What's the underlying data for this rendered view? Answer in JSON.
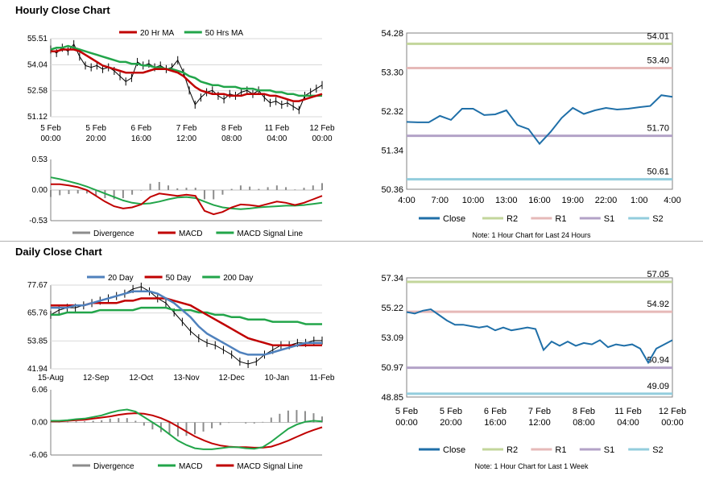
{
  "hourly": {
    "title": "Hourly Close Chart",
    "price": {
      "legend": [
        {
          "label": "20 Hr MA",
          "color": "#c00000"
        },
        {
          "label": "50 Hrs MA",
          "color": "#22a54a"
        }
      ],
      "yticks": [
        "55.51",
        "54.04",
        "52.58",
        "51.12"
      ],
      "ylim": [
        51.12,
        55.51
      ],
      "xticks": [
        [
          "5 Feb",
          "00:00"
        ],
        [
          "5 Feb",
          "20:00"
        ],
        [
          "6 Feb",
          "16:00"
        ],
        [
          "7 Feb",
          "12:00"
        ],
        [
          "8 Feb",
          "08:00"
        ],
        [
          "11 Feb",
          "04:00"
        ],
        [
          "12 Feb",
          "00:00"
        ]
      ],
      "close_series": [
        54.9,
        54.7,
        55.0,
        54.8,
        55.2,
        54.5,
        54.0,
        53.9,
        54.0,
        53.8,
        53.9,
        53.7,
        53.4,
        53.1,
        53.3,
        54.2,
        54.0,
        54.1,
        53.9,
        54.0,
        53.8,
        53.9,
        54.3,
        53.6,
        52.6,
        51.8,
        52.2,
        52.5,
        52.6,
        52.3,
        52.1,
        52.4,
        52.3,
        52.5,
        52.6,
        52.4,
        52.6,
        52.2,
        51.9,
        52.0,
        51.8,
        51.9,
        51.7,
        51.5,
        52.3,
        52.5,
        52.7,
        52.9
      ],
      "ma20": [
        54.8,
        54.8,
        54.9,
        54.9,
        54.9,
        54.8,
        54.6,
        54.4,
        54.2,
        54.0,
        53.9,
        53.8,
        53.7,
        53.6,
        53.6,
        53.6,
        53.6,
        53.7,
        53.8,
        53.8,
        53.8,
        53.7,
        53.6,
        53.4,
        53.1,
        52.8,
        52.6,
        52.5,
        52.4,
        52.4,
        52.4,
        52.3,
        52.3,
        52.3,
        52.4,
        52.4,
        52.4,
        52.4,
        52.3,
        52.3,
        52.2,
        52.1,
        52.0,
        52.0,
        52.1,
        52.2,
        52.3,
        52.4
      ],
      "ma50": [
        54.9,
        55.0,
        55.0,
        55.1,
        55.0,
        54.9,
        54.8,
        54.7,
        54.6,
        54.5,
        54.4,
        54.3,
        54.2,
        54.2,
        54.1,
        54.1,
        54.0,
        54.0,
        53.9,
        53.9,
        53.8,
        53.8,
        53.7,
        53.6,
        53.4,
        53.3,
        53.1,
        53.0,
        52.9,
        52.9,
        52.8,
        52.8,
        52.8,
        52.7,
        52.7,
        52.7,
        52.6,
        52.6,
        52.6,
        52.5,
        52.5,
        52.4,
        52.4,
        52.3,
        52.3,
        52.3,
        52.3,
        52.3
      ]
    },
    "macd": {
      "yticks": [
        "0.53",
        "0.00",
        "-0.53"
      ],
      "ylim": [
        -0.53,
        0.53
      ],
      "legend": [
        {
          "label": "Divergence",
          "color": "#8c8c8c"
        },
        {
          "label": "MACD",
          "color": "#c00000"
        },
        {
          "label": "MACD Signal Line",
          "color": "#22a54a"
        }
      ],
      "macd_series": [
        0.1,
        0.1,
        0.08,
        0.05,
        0.0,
        -0.1,
        -0.2,
        -0.28,
        -0.32,
        -0.3,
        -0.25,
        -0.12,
        -0.06,
        -0.08,
        -0.1,
        -0.08,
        -0.1,
        -0.36,
        -0.42,
        -0.38,
        -0.3,
        -0.25,
        -0.26,
        -0.28,
        -0.24,
        -0.2,
        -0.22,
        -0.26,
        -0.22,
        -0.16,
        -0.1
      ],
      "signal_series": [
        0.22,
        0.19,
        0.15,
        0.11,
        0.06,
        0.0,
        -0.06,
        -0.12,
        -0.18,
        -0.22,
        -0.24,
        -0.23,
        -0.2,
        -0.16,
        -0.13,
        -0.12,
        -0.14,
        -0.2,
        -0.26,
        -0.3,
        -0.32,
        -0.33,
        -0.32,
        -0.3,
        -0.29,
        -0.28,
        -0.27,
        -0.27,
        -0.26,
        -0.24,
        -0.22
      ]
    },
    "levels": {
      "yticks": [
        "54.28",
        "53.30",
        "52.32",
        "51.34",
        "50.36"
      ],
      "ylim": [
        50.36,
        54.28
      ],
      "xticks": [
        "4:00",
        "7:00",
        "10:00",
        "13:00",
        "16:00",
        "19:00",
        "22:00",
        "1:00",
        "4:00"
      ],
      "close": [
        52.05,
        52.04,
        52.04,
        52.2,
        52.1,
        52.38,
        52.38,
        52.22,
        52.24,
        52.34,
        51.97,
        51.87,
        51.5,
        51.8,
        52.15,
        52.4,
        52.25,
        52.34,
        52.4,
        52.36,
        52.38,
        52.42,
        52.45,
        52.72,
        52.68
      ],
      "lines": [
        {
          "name": "R2",
          "value": 54.01,
          "label": "54.01",
          "color": "#c3d69b"
        },
        {
          "name": "R1",
          "value": 53.4,
          "label": "53.40",
          "color": "#e6b9b8"
        },
        {
          "name": "S1",
          "value": 51.7,
          "label": "51.70",
          "color": "#b3a2c7"
        },
        {
          "name": "S2",
          "value": 50.61,
          "label": "50.61",
          "color": "#93cddd"
        }
      ],
      "close_label": "Close",
      "close_color": "#1f6fa8",
      "note": "Note: 1 Hour Chart for Last 24 Hours"
    }
  },
  "daily": {
    "title": "Daily Close Chart",
    "price": {
      "legend": [
        {
          "label": "20 Day",
          "color": "#4f81bd"
        },
        {
          "label": "50 Day",
          "color": "#c00000"
        },
        {
          "label": "200 Day",
          "color": "#22a54a"
        }
      ],
      "yticks": [
        "77.67",
        "65.76",
        "53.85",
        "41.94"
      ],
      "ylim": [
        41.94,
        77.67
      ],
      "xticks": [
        "15-Aug",
        "12-Sep",
        "12-Oct",
        "13-Nov",
        "12-Dec",
        "10-Jan",
        "11-Feb"
      ],
      "close_series": [
        65,
        67,
        68,
        68,
        69,
        70,
        71,
        72,
        73,
        74,
        76,
        77,
        75,
        72,
        70,
        66,
        62,
        58,
        55,
        53,
        52,
        50,
        48,
        45,
        44,
        45,
        48,
        50,
        52,
        52,
        53,
        53,
        54,
        54
      ],
      "ma20": [
        68,
        68,
        68,
        69,
        69,
        70,
        71,
        72,
        73,
        74,
        75,
        75,
        75,
        74,
        72,
        70,
        67,
        64,
        60,
        57,
        55,
        53,
        51,
        49,
        48,
        48,
        48,
        49,
        50,
        51,
        52,
        53,
        53,
        53
      ],
      "ma50": [
        69,
        69,
        69,
        69,
        69,
        70,
        70,
        70,
        70,
        71,
        71,
        72,
        72,
        72,
        72,
        71,
        70,
        69,
        67,
        65,
        63,
        61,
        59,
        57,
        55,
        54,
        53,
        52,
        52,
        52,
        52,
        52,
        52,
        52
      ],
      "ma200": [
        65,
        65,
        66,
        66,
        66,
        66,
        67,
        67,
        67,
        67,
        67,
        68,
        68,
        68,
        68,
        67,
        67,
        67,
        66,
        66,
        65,
        65,
        64,
        64,
        63,
        63,
        63,
        62,
        62,
        62,
        62,
        61,
        61,
        61
      ]
    },
    "macd": {
      "yticks": [
        "6.06",
        "0.00",
        "-6.06"
      ],
      "ylim": [
        -6.06,
        6.06
      ],
      "legend": [
        {
          "label": "Divergence",
          "color": "#8c8c8c"
        },
        {
          "label": "MACD",
          "color": "#22a54a"
        },
        {
          "label": "MACD Signal Line",
          "color": "#c00000"
        }
      ],
      "macd_series": [
        0.3,
        0.3,
        0.4,
        0.6,
        0.7,
        1.0,
        1.3,
        1.8,
        2.2,
        2.4,
        2.0,
        1.0,
        0.0,
        -1.0,
        -2.2,
        -3.4,
        -4.2,
        -4.8,
        -5.0,
        -5.0,
        -4.8,
        -4.6,
        -4.6,
        -4.8,
        -4.9,
        -4.6,
        -3.6,
        -2.4,
        -1.2,
        -0.4,
        0.1,
        0.3,
        0.2
      ],
      "signal_series": [
        0.2,
        0.2,
        0.3,
        0.4,
        0.5,
        0.7,
        0.9,
        1.1,
        1.4,
        1.6,
        1.7,
        1.6,
        1.3,
        0.8,
        0.1,
        -0.8,
        -1.7,
        -2.6,
        -3.3,
        -3.9,
        -4.3,
        -4.5,
        -4.6,
        -4.6,
        -4.7,
        -4.7,
        -4.5,
        -4.0,
        -3.4,
        -2.7,
        -2.0,
        -1.4,
        -0.9
      ]
    },
    "levels": {
      "yticks": [
        "57.34",
        "55.22",
        "53.09",
        "50.97",
        "48.85"
      ],
      "ylim": [
        48.85,
        57.34
      ],
      "xticks": [
        [
          "5 Feb",
          "00:00"
        ],
        [
          "5 Feb",
          "20:00"
        ],
        [
          "6 Feb",
          "16:00"
        ],
        [
          "7 Feb",
          "12:00"
        ],
        [
          "8 Feb",
          "08:00"
        ],
        [
          "11 Feb",
          "04:00"
        ],
        [
          "12 Feb",
          "00:00"
        ]
      ],
      "close": [
        54.9,
        54.8,
        55.0,
        55.1,
        54.7,
        54.3,
        54.0,
        54.0,
        53.9,
        53.8,
        53.9,
        53.6,
        53.8,
        53.6,
        53.7,
        53.8,
        53.7,
        52.2,
        52.8,
        52.5,
        52.8,
        52.5,
        52.7,
        52.6,
        52.9,
        52.4,
        52.6,
        52.5,
        52.6,
        52.3,
        51.3,
        52.3,
        52.6,
        52.9
      ],
      "lines": [
        {
          "name": "R2",
          "value": 57.05,
          "label": "57.05",
          "color": "#c3d69b"
        },
        {
          "name": "R1",
          "value": 54.92,
          "label": "54.92",
          "color": "#e6b9b8"
        },
        {
          "name": "S1",
          "value": 50.94,
          "label": "50.94",
          "color": "#b3a2c7"
        },
        {
          "name": "S2",
          "value": 49.09,
          "label": "49.09",
          "color": "#93cddd"
        }
      ],
      "close_label": "Close",
      "close_color": "#1f6fa8",
      "note": "Note: 1 Hour Chart for Last 1 Week"
    }
  }
}
